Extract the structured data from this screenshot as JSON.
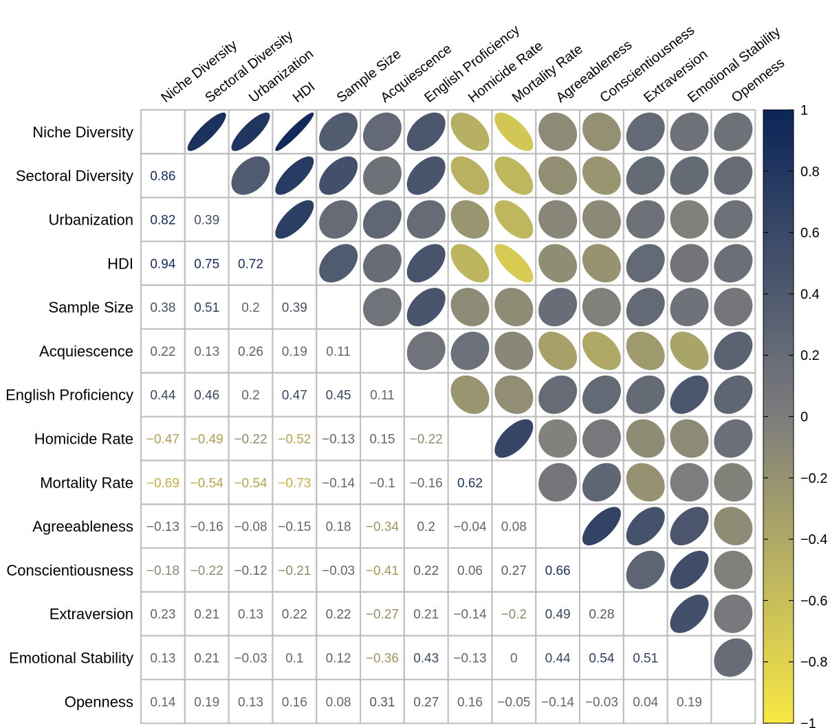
{
  "chart_data": {
    "type": "heatmap",
    "subtype": "correlation-matrix",
    "lower_triangle": "numbers",
    "upper_triangle": "ellipses",
    "variables": [
      "Niche Diversity",
      "Sectoral Diversity",
      "Urbanization",
      "HDI",
      "Sample Size",
      "Acquiescence",
      "English Proficiency",
      "Homicide Rate",
      "Mortality Rate",
      "Agreeableness",
      "Conscientiousness",
      "Extraversion",
      "Emotional Stability",
      "Openness"
    ],
    "lower_labels": [
      [
        "0.86"
      ],
      [
        "0.82",
        "0.39"
      ],
      [
        "0.94",
        "0.75",
        "0.72"
      ],
      [
        "0.38",
        "0.51",
        "0.2",
        "0.39"
      ],
      [
        "0.22",
        "0.13",
        "0.26",
        "0.19",
        "0.11"
      ],
      [
        "0.44",
        "0.46",
        "0.2",
        "0.47",
        "0.45",
        "0.11"
      ],
      [
        "−0.47",
        "−0.49",
        "−0.22",
        "−0.52",
        "−0.13",
        "0.15",
        "−0.22"
      ],
      [
        "−0.69",
        "−0.54",
        "−0.54",
        "−0.73",
        "−0.14",
        "−0.1",
        "−0.16",
        "0.62"
      ],
      [
        "−0.13",
        "−0.16",
        "−0.08",
        "−0.15",
        "0.18",
        "−0.34",
        "0.2",
        "−0.04",
        "0.08"
      ],
      [
        "−0.18",
        "−0.22",
        "−0.12",
        "−0.21",
        "−0.03",
        "−0.41",
        "0.22",
        "0.06",
        "0.27",
        "0.66"
      ],
      [
        "0.23",
        "0.21",
        "0.13",
        "0.22",
        "0.22",
        "−0.27",
        "0.21",
        "−0.14",
        "−0.2",
        "0.49",
        "0.28"
      ],
      [
        "0.13",
        "0.21",
        "−0.03",
        "0.1",
        "0.12",
        "−0.36",
        "0.43",
        "−0.13",
        "0",
        "0.44",
        "0.54",
        "0.51"
      ],
      [
        "0.14",
        "0.19",
        "0.13",
        "0.16",
        "0.08",
        "0.31",
        "0.27",
        "0.16",
        "−0.05",
        "−0.14",
        "−0.03",
        "0.04",
        "0.19"
      ]
    ],
    "colorbar": {
      "ticks": [
        "1",
        "0.8",
        "0.6",
        "0.4",
        "0.2",
        "0",
        "−0.2",
        "−0.4",
        "−0.6",
        "−0.8",
        "−1"
      ],
      "min": -1,
      "max": 1,
      "colors": {
        "negative": "#f8e843",
        "neutral": "#7d7d7d",
        "positive": "#0b2559"
      }
    },
    "grid": true
  }
}
